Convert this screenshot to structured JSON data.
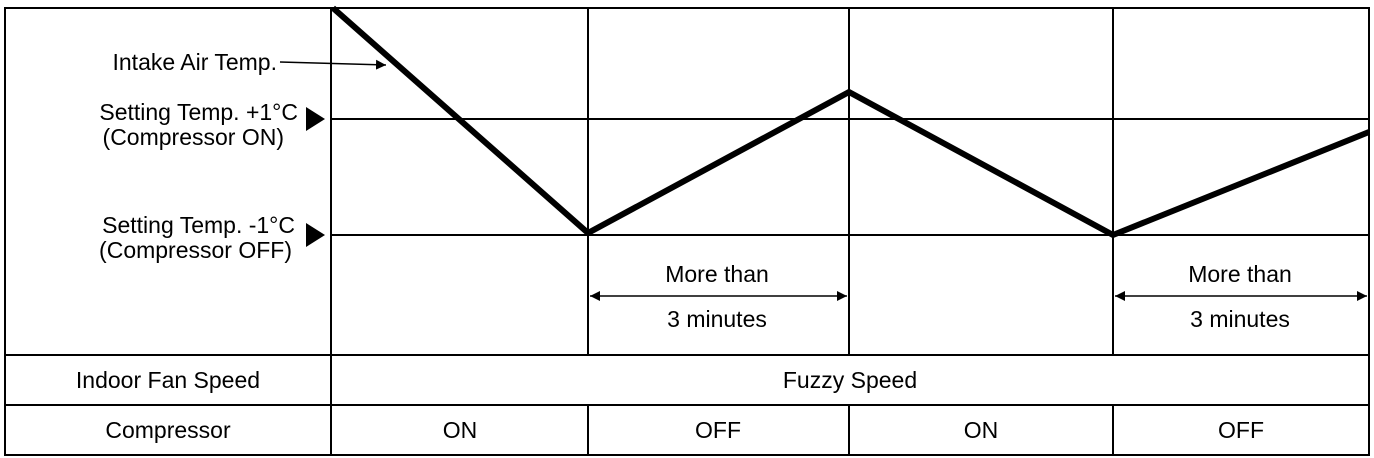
{
  "labels": {
    "intake": "Intake Air Temp.",
    "upper_line1": "Setting Temp. +1°C",
    "upper_line2": "(Compressor ON)",
    "lower_line1": "Setting Temp. -1°C",
    "lower_line2": "(Compressor OFF)"
  },
  "durations": [
    {
      "line1": "More than",
      "line2": "3 minutes"
    },
    {
      "line1": "More than",
      "line2": "3 minutes"
    }
  ],
  "table": {
    "fan_row_label": "Indoor Fan Speed",
    "fan_value": "Fuzzy Speed",
    "compressor_row_label": "Compressor",
    "compressor_states": [
      "ON",
      "OFF",
      "ON",
      "OFF"
    ]
  }
}
